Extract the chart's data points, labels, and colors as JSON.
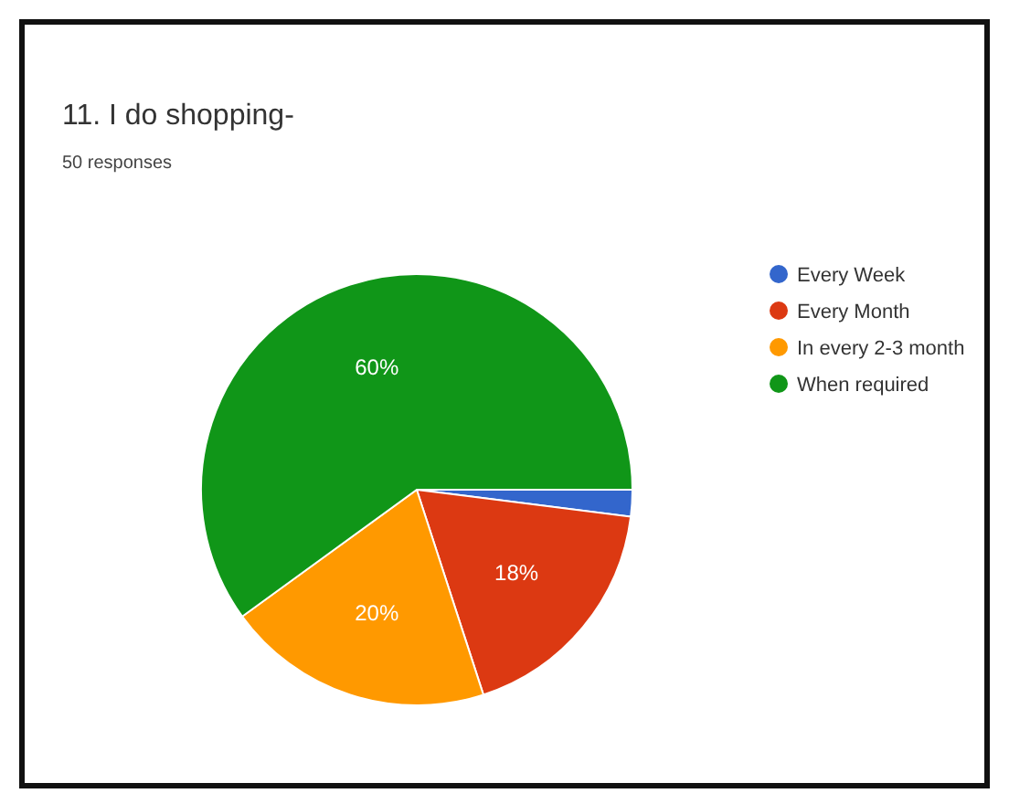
{
  "chart_data": {
    "type": "pie",
    "title": "11. I do shopping-",
    "subtitle": "50 responses",
    "categories": [
      "Every Week",
      "Every Month",
      "In every 2-3 month",
      "When required"
    ],
    "values": [
      2,
      18,
      20,
      60
    ],
    "colors": [
      "#3366cc",
      "#dc3912",
      "#ff9900",
      "#109618"
    ],
    "value_labels": [
      null,
      "18%",
      "20%",
      "60%"
    ],
    "legend": "right"
  }
}
